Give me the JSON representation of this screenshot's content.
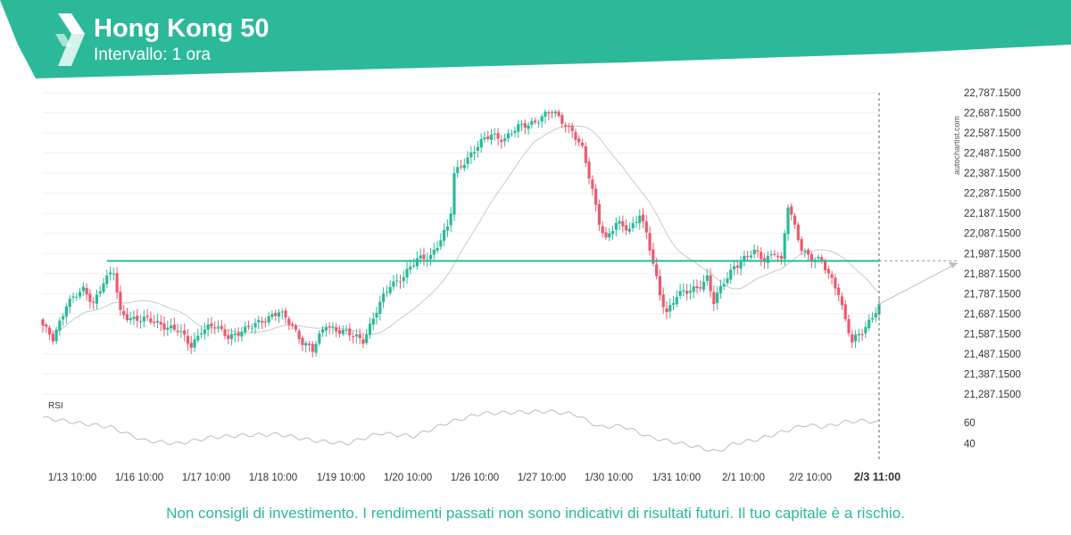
{
  "header": {
    "title": "Hong Kong 50",
    "subtitle": "Intervallo: 1 ora",
    "brand_color": "#2bb999",
    "logo_icon": "autochartist-logo-icon"
  },
  "watermark": "autochartist.com",
  "disclaimer": "Non consigli di investimento. I rendimenti passati non sono indicativi di risultati futuri. Il tuo capitale è a rischio.",
  "chart_data": {
    "type": "candlestick",
    "title": "Hong Kong 50",
    "interval": "1 ora",
    "up_color": "#2bb999",
    "down_color": "#ec5a6e",
    "price_axis": {
      "min": 21287.15,
      "max": 22787.15,
      "ticks": [
        "22,787.1500",
        "22,687.1500",
        "22,587.1500",
        "22,487.1500",
        "22,387.1500",
        "22,287.1500",
        "22,187.1500",
        "22,087.1500",
        "21,987.1500",
        "21,887.1500",
        "21,787.1500",
        "21,687.1500",
        "21,587.1500",
        "21,487.1500",
        "21,387.1500",
        "21,287.1500"
      ]
    },
    "x_tick_labels": [
      "1/13 10:00",
      "1/16 10:00",
      "1/17 10:00",
      "1/18 10:00",
      "1/19 10:00",
      "1/20 10:00",
      "1/26 10:00",
      "1/27 10:00",
      "1/30 10:00",
      "1/31 10:00",
      "2/1 10:00",
      "2/2 10:00"
    ],
    "current_time_label": "2/3 11:00",
    "resistance_level": 21950,
    "projection": {
      "from_price": 21735,
      "to_price": 21940
    },
    "close_path": [
      {
        "t": 0,
        "c": 21620
      },
      {
        "t": 3,
        "c": 21560
      },
      {
        "t": 7,
        "c": 21740
      },
      {
        "t": 12,
        "c": 21800
      },
      {
        "t": 15,
        "c": 21745
      },
      {
        "t": 18,
        "c": 21850
      },
      {
        "t": 21,
        "c": 21890
      },
      {
        "t": 23,
        "c": 21690
      },
      {
        "t": 28,
        "c": 21660
      },
      {
        "t": 35,
        "c": 21640
      },
      {
        "t": 40,
        "c": 21600
      },
      {
        "t": 44,
        "c": 21530
      },
      {
        "t": 47,
        "c": 21610
      },
      {
        "t": 51,
        "c": 21620
      },
      {
        "t": 55,
        "c": 21580
      },
      {
        "t": 60,
        "c": 21600
      },
      {
        "t": 65,
        "c": 21660
      },
      {
        "t": 70,
        "c": 21690
      },
      {
        "t": 74,
        "c": 21630
      },
      {
        "t": 77,
        "c": 21550
      },
      {
        "t": 80,
        "c": 21500
      },
      {
        "t": 84,
        "c": 21640
      },
      {
        "t": 87,
        "c": 21610
      },
      {
        "t": 91,
        "c": 21580
      },
      {
        "t": 95,
        "c": 21560
      },
      {
        "t": 99,
        "c": 21700
      },
      {
        "t": 103,
        "c": 21830
      },
      {
        "t": 107,
        "c": 21880
      },
      {
        "t": 111,
        "c": 21950
      },
      {
        "t": 115,
        "c": 21980
      },
      {
        "t": 118,
        "c": 22060
      },
      {
        "t": 120,
        "c": 22110
      },
      {
        "t": 121,
        "c": 22190
      },
      {
        "t": 122,
        "c": 22380
      },
      {
        "t": 125,
        "c": 22450
      },
      {
        "t": 129,
        "c": 22520
      },
      {
        "t": 133,
        "c": 22580
      },
      {
        "t": 137,
        "c": 22560
      },
      {
        "t": 141,
        "c": 22610
      },
      {
        "t": 146,
        "c": 22650
      },
      {
        "t": 151,
        "c": 22690
      },
      {
        "t": 154,
        "c": 22650
      },
      {
        "t": 157,
        "c": 22600
      },
      {
        "t": 160,
        "c": 22500
      },
      {
        "t": 163,
        "c": 22300
      },
      {
        "t": 165,
        "c": 22150
      },
      {
        "t": 167,
        "c": 22060
      },
      {
        "t": 170,
        "c": 22130
      },
      {
        "t": 174,
        "c": 22110
      },
      {
        "t": 177,
        "c": 22190
      },
      {
        "t": 179,
        "c": 22080
      },
      {
        "t": 181,
        "c": 21930
      },
      {
        "t": 183,
        "c": 21780
      },
      {
        "t": 185,
        "c": 21700
      },
      {
        "t": 188,
        "c": 21780
      },
      {
        "t": 191,
        "c": 21790
      },
      {
        "t": 194,
        "c": 21820
      },
      {
        "t": 197,
        "c": 21870
      },
      {
        "t": 199,
        "c": 21740
      },
      {
        "t": 202,
        "c": 21840
      },
      {
        "t": 205,
        "c": 21930
      },
      {
        "t": 208,
        "c": 21960
      },
      {
        "t": 211,
        "c": 21990
      },
      {
        "t": 214,
        "c": 21960
      },
      {
        "t": 217,
        "c": 22000
      },
      {
        "t": 219,
        "c": 21940
      },
      {
        "t": 221,
        "c": 22220
      },
      {
        "t": 223,
        "c": 22120
      },
      {
        "t": 225,
        "c": 22020
      },
      {
        "t": 228,
        "c": 21960
      },
      {
        "t": 231,
        "c": 21940
      },
      {
        "t": 234,
        "c": 21860
      },
      {
        "t": 236,
        "c": 21800
      },
      {
        "t": 238,
        "c": 21650
      },
      {
        "t": 240,
        "c": 21540
      },
      {
        "t": 243,
        "c": 21600
      },
      {
        "t": 246,
        "c": 21680
      },
      {
        "t": 248,
        "c": 21735
      }
    ],
    "rsi": {
      "label": "RSI",
      "ticks": [
        "60",
        "40"
      ],
      "min": 25,
      "max": 85,
      "color": "#bbbbbb",
      "path": [
        {
          "t": 0,
          "v": 65
        },
        {
          "t": 10,
          "v": 60
        },
        {
          "t": 20,
          "v": 56
        },
        {
          "t": 30,
          "v": 43
        },
        {
          "t": 40,
          "v": 40
        },
        {
          "t": 50,
          "v": 46
        },
        {
          "t": 60,
          "v": 48
        },
        {
          "t": 70,
          "v": 49
        },
        {
          "t": 80,
          "v": 43
        },
        {
          "t": 90,
          "v": 40
        },
        {
          "t": 100,
          "v": 50
        },
        {
          "t": 110,
          "v": 47
        },
        {
          "t": 120,
          "v": 60
        },
        {
          "t": 130,
          "v": 69
        },
        {
          "t": 140,
          "v": 70
        },
        {
          "t": 150,
          "v": 71
        },
        {
          "t": 158,
          "v": 68
        },
        {
          "t": 165,
          "v": 56
        },
        {
          "t": 172,
          "v": 57
        },
        {
          "t": 180,
          "v": 46
        },
        {
          "t": 188,
          "v": 41
        },
        {
          "t": 195,
          "v": 36
        },
        {
          "t": 200,
          "v": 32
        },
        {
          "t": 205,
          "v": 40
        },
        {
          "t": 212,
          "v": 44
        },
        {
          "t": 220,
          "v": 52
        },
        {
          "t": 226,
          "v": 58
        },
        {
          "t": 232,
          "v": 56
        },
        {
          "t": 238,
          "v": 61
        },
        {
          "t": 244,
          "v": 62
        },
        {
          "t": 248,
          "v": 60
        }
      ]
    }
  }
}
